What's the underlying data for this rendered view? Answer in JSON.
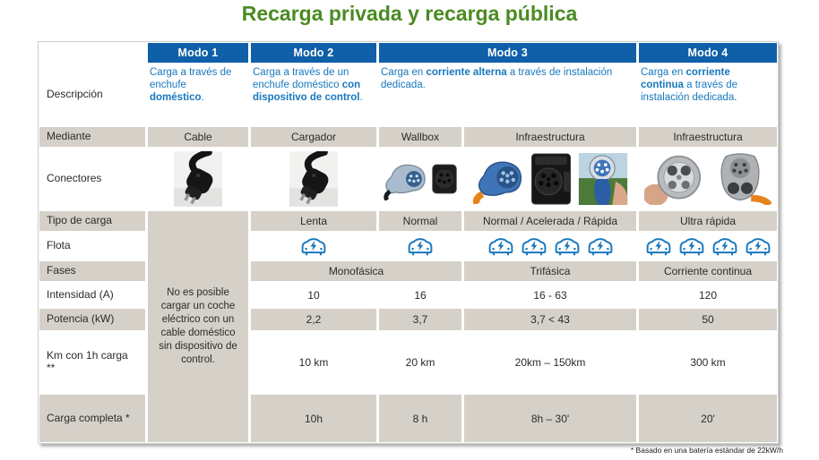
{
  "title": "Recarga privada y recarga pública",
  "footnote": "* Basado en una batería estándar de 22kW/h",
  "colors": {
    "title_green": "#4a8b22",
    "header_blue": "#0f60a8",
    "description_blue": "#1878be",
    "cell_gray": "#d5d1c9",
    "car_icon_blue": "#1878be"
  },
  "header": {
    "modes": [
      "Modo 1",
      "Modo 2",
      "Modo 3",
      "Modo 4"
    ]
  },
  "rows": {
    "descripcion": {
      "label": "Descripción",
      "modo1": {
        "t1": "Carga a través de enchufe ",
        "b": "doméstico",
        "t2": "."
      },
      "modo2": {
        "t1": "Carga a través de un enchufe doméstico ",
        "b": "con dispositivo de control",
        "t2": "."
      },
      "modo3": {
        "t1": "Carga en ",
        "b": "corriente alterna",
        "t2": " a través de instalación dedicada."
      },
      "modo4": {
        "t1": "Carga en ",
        "b": "corriente continua",
        "t2": " a través de instalación dedicada."
      }
    },
    "mediante": {
      "label": "Mediante",
      "values": [
        "Cable",
        "Cargador",
        "Wallbox",
        "Infraestructura",
        "Infraestructura"
      ]
    },
    "conectores": {
      "label": "Conectores"
    },
    "modo1_note": "No es posible cargar un coche eléctrico con un cable doméstico sin dispositivo de control.",
    "tipo_carga": {
      "label": "Tipo de carga",
      "values": [
        "Lenta",
        "Normal",
        "Normal / Acelerada / Rápida",
        "Ultra rápida"
      ]
    },
    "flota": {
      "label": "Flota",
      "counts": [
        1,
        1,
        4,
        4
      ]
    },
    "fases": {
      "label": "Fases",
      "values": [
        "Monofásica",
        "Trifásica",
        "Corriente continua"
      ]
    },
    "intensidad": {
      "label": "Intensidad (A)",
      "values": [
        "10",
        "16",
        "16 - 63",
        "120"
      ]
    },
    "potencia": {
      "label": "Potencia (kW)",
      "values": [
        "2,2",
        "3,7",
        "3,7 < 43",
        "50"
      ]
    },
    "km_1h": {
      "label": "Km con 1h carga",
      "label2": "**",
      "values": [
        "10 km",
        "20 km",
        "20km – 150km",
        "300 km"
      ]
    },
    "carga_completa": {
      "label": "Carga completa *",
      "values": [
        "10h",
        "8 h",
        "8h – 30'",
        "20'"
      ]
    }
  }
}
